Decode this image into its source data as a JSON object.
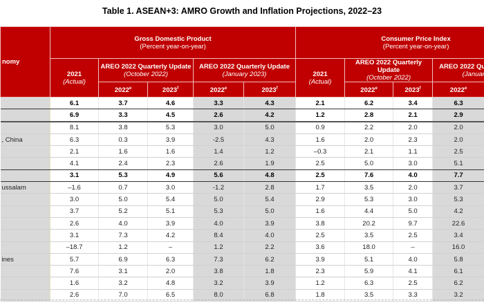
{
  "title": "Table 1. ASEAN+3: AMRO Growth and Inflation Projections, 2022–23",
  "header": {
    "economy": "nomy",
    "gdp": {
      "title": "Gross Domestic Product",
      "sub": "(Percent year-on-year)"
    },
    "cpi": {
      "title": "Consumer Price Index",
      "sub": "(Percent year-on-year)"
    },
    "actual_year": "2021",
    "actual_label": "(Actual)",
    "oct": {
      "title": "AREO 2022 Quarterly Update",
      "sub": "(October 2022)"
    },
    "jan": {
      "title": "AREO 2022 Quarterly Update",
      "sub": "(January 2023)"
    },
    "y2022": "2022",
    "sup_e": "e",
    "y2023": "2023",
    "sup_f": "f"
  },
  "colors": {
    "header_red": "#c00000",
    "shade": "#d9d9d9"
  },
  "rows": [
    {
      "economy": "",
      "v": [
        "6.1",
        "3.7",
        "4.6",
        "3.3",
        "4.3",
        "2.1",
        "6.2",
        "3.4",
        "6.3"
      ],
      "bold": true
    },
    {
      "economy": "",
      "v": [
        "6.9",
        "3.3",
        "4.5",
        "2.6",
        "4.2",
        "1.2",
        "2.8",
        "2.1",
        "2.9"
      ],
      "bold": true
    },
    {
      "economy": "",
      "v": [
        "8.1",
        "3.8",
        "5.3",
        "3.0",
        "5.0",
        "0.9",
        "2.2",
        "2.0",
        "2.0"
      ]
    },
    {
      "economy": ", China",
      "v": [
        "6.3",
        "0.3",
        "3.9",
        "-2.5",
        "4.3",
        "1.6",
        "2.0",
        "2.3",
        "2.0"
      ]
    },
    {
      "economy": "",
      "v": [
        "2.1",
        "1.6",
        "1.6",
        "1.4",
        "1.2",
        "–0.3",
        "2.1",
        "1.1",
        "2.5"
      ]
    },
    {
      "economy": "",
      "v": [
        "4.1",
        "2.4",
        "2.3",
        "2.6",
        "1.9",
        "2.5",
        "5.0",
        "3.0",
        "5.1"
      ]
    },
    {
      "economy": "",
      "v": [
        "3.1",
        "5.3",
        "4.9",
        "5.6",
        "4.8",
        "2.5",
        "7.6",
        "4.0",
        "7.7"
      ],
      "bold": true
    },
    {
      "economy": "ussalam",
      "v": [
        "–1.6",
        "0.7",
        "3.0",
        "-1.2",
        "2.8",
        "1.7",
        "3.5",
        "2.0",
        "3.7"
      ]
    },
    {
      "economy": "",
      "v": [
        "3.0",
        "5.0",
        "5.4",
        "5.0",
        "5.4",
        "2.9",
        "5.3",
        "3.0",
        "5.3"
      ]
    },
    {
      "economy": "",
      "v": [
        "3.7",
        "5.2",
        "5.1",
        "5.3",
        "5.0",
        "1.6",
        "4.4",
        "5.0",
        "4.2"
      ]
    },
    {
      "economy": "",
      "v": [
        "2.6",
        "4.0",
        "3.9",
        "4.0",
        "3.9",
        "3.8",
        "20.2",
        "9.7",
        "22.6"
      ]
    },
    {
      "economy": "",
      "v": [
        "3.1",
        "7.3",
        "4.2",
        "8.4",
        "4.0",
        "2.5",
        "3.5",
        "2.5",
        "3.4"
      ]
    },
    {
      "economy": "",
      "v": [
        "–18.7",
        "1.2",
        "–",
        "1.2",
        "2.2",
        "3.6",
        "18.0",
        "–",
        "16.0"
      ]
    },
    {
      "economy": "ines",
      "v": [
        "5.7",
        "6.9",
        "6.3",
        "7.3",
        "6.2",
        "3.9",
        "5.1",
        "4.0",
        "5.8"
      ]
    },
    {
      "economy": "",
      "v": [
        "7.6",
        "3.1",
        "2.0",
        "3.8",
        "1.8",
        "2.3",
        "5.9",
        "4.1",
        "6.1"
      ]
    },
    {
      "economy": "",
      "v": [
        "1.6",
        "3.2",
        "4.8",
        "3.2",
        "3.9",
        "1.2",
        "6.3",
        "2.5",
        "6.2"
      ]
    },
    {
      "economy": "",
      "v": [
        "2.6",
        "7.0",
        "6.5",
        "8.0",
        "6.8",
        "1.8",
        "3.5",
        "3.3",
        "3.2"
      ]
    }
  ]
}
